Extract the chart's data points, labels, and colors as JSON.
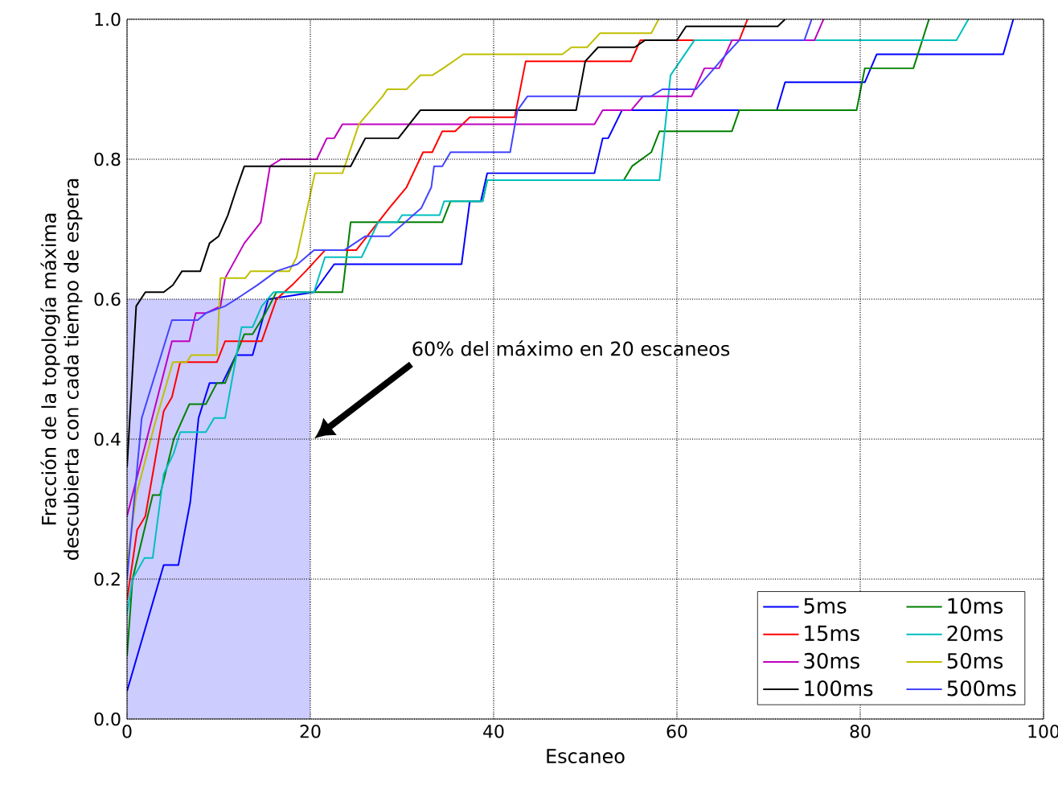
{
  "chart_data": {
    "type": "line",
    "xlabel": "Escaneo",
    "ylabel": "Fracción de la topología máxima descubierta con cada tiempo de espera",
    "xlim": [
      0,
      100
    ],
    "ylim": [
      0,
      1
    ],
    "xticks": [
      0,
      20,
      40,
      60,
      80,
      100
    ],
    "yticks": [
      {
        "value": 0,
        "label": "0.0"
      },
      {
        "value": 0.2,
        "label": "0.2"
      },
      {
        "value": 0.4,
        "label": "0.4"
      },
      {
        "value": 0.6,
        "label": "0.6"
      },
      {
        "value": 0.8,
        "label": "0.8"
      },
      {
        "value": 1,
        "label": "1.0"
      }
    ],
    "grid": true,
    "legend": "bottom right",
    "line_style": "solid",
    "annotations": [
      "60% del máximo en 20 escaneos"
    ],
    "series": [
      {
        "type": "area",
        "color": "#ccccff",
        "x": [
          0,
          20
        ],
        "values": [
          0.6,
          0.6
        ]
      },
      {
        "name": "5ms",
        "color": "#0000ff",
        "x": [
          0,
          4,
          5.6,
          6.9,
          7.8,
          9,
          10.4,
          11.9,
          13.7,
          15.4,
          20.4,
          22.6,
          36.5,
          37.4,
          38.6,
          39.3,
          51,
          51.9,
          52.5,
          54,
          70.9,
          71.8,
          80.5,
          81.8,
          95.6,
          96.7
        ],
        "values": [
          0.04,
          0.22,
          0.22,
          0.31,
          0.43,
          0.48,
          0.48,
          0.52,
          0.52,
          0.6,
          0.61,
          0.65,
          0.65,
          0.74,
          0.74,
          0.78,
          0.78,
          0.83,
          0.83,
          0.87,
          0.87,
          0.91,
          0.91,
          0.95,
          0.95,
          1.0
        ]
      },
      {
        "name": "10ms",
        "color": "#008000",
        "x": [
          0,
          0.6,
          2.8,
          3.6,
          5.1,
          6.8,
          8.6,
          9.8,
          10.7,
          11.9,
          12.8,
          13.7,
          15.1,
          16.3,
          23.5,
          24.4,
          34.4,
          35.3,
          38.8,
          39.3,
          54.2,
          55.1,
          57.2,
          58.1,
          66,
          66.8,
          79.6,
          80.5,
          85.8,
          87.5
        ],
        "values": [
          0.09,
          0.2,
          0.32,
          0.32,
          0.4,
          0.45,
          0.45,
          0.48,
          0.48,
          0.52,
          0.55,
          0.55,
          0.58,
          0.61,
          0.61,
          0.71,
          0.71,
          0.74,
          0.74,
          0.77,
          0.77,
          0.79,
          0.81,
          0.84,
          0.84,
          0.87,
          0.87,
          0.93,
          0.93,
          1.0
        ]
      },
      {
        "name": "15ms",
        "color": "#ff0000",
        "x": [
          0,
          1.1,
          2,
          2.8,
          4,
          4.9,
          5.8,
          9.8,
          10.7,
          14.7,
          16.3,
          18,
          19.5,
          21.6,
          25,
          28.6,
          30.5,
          32.3,
          33.3,
          34.4,
          35.8,
          37.4,
          42.3,
          43.5,
          55,
          56,
          66.8,
          67.7
        ],
        "values": [
          0.17,
          0.27,
          0.29,
          0.35,
          0.44,
          0.46,
          0.51,
          0.51,
          0.54,
          0.54,
          0.6,
          0.62,
          0.64,
          0.67,
          0.67,
          0.73,
          0.76,
          0.81,
          0.81,
          0.84,
          0.84,
          0.86,
          0.86,
          0.94,
          0.94,
          0.97,
          0.97,
          1.0
        ]
      },
      {
        "name": "20ms",
        "color": "#00bfbf",
        "x": [
          0,
          0.6,
          1.9,
          2.8,
          4,
          5.1,
          5.8,
          8.6,
          9.5,
          10.7,
          12.5,
          13.7,
          14.7,
          16,
          20.4,
          21.6,
          25.6,
          27.4,
          29.5,
          30,
          34.1,
          34.6,
          38.8,
          39.3,
          58.1,
          59.3,
          61.9,
          90.5,
          91.8
        ],
        "values": [
          0.15,
          0.2,
          0.23,
          0.23,
          0.35,
          0.38,
          0.41,
          0.41,
          0.43,
          0.43,
          0.56,
          0.56,
          0.59,
          0.61,
          0.61,
          0.66,
          0.66,
          0.71,
          0.71,
          0.72,
          0.72,
          0.74,
          0.74,
          0.77,
          0.77,
          0.92,
          0.97,
          0.97,
          1.0
        ]
      },
      {
        "name": "30ms",
        "color": "#bf00bf",
        "x": [
          0,
          4.9,
          6.8,
          7.5,
          8.6,
          10.2,
          10.7,
          12.8,
          14.6,
          15.6,
          16.8,
          20.7,
          21.8,
          22.6,
          23.5,
          51,
          51.9,
          55,
          56.3,
          61.6,
          63,
          64.6,
          66,
          75,
          76
        ],
        "values": [
          0.29,
          0.54,
          0.54,
          0.58,
          0.58,
          0.59,
          0.63,
          0.68,
          0.71,
          0.79,
          0.8,
          0.8,
          0.83,
          0.83,
          0.85,
          0.85,
          0.87,
          0.87,
          0.89,
          0.89,
          0.93,
          0.93,
          0.97,
          0.97,
          1.0
        ]
      },
      {
        "name": "50ms",
        "color": "#bfbf00",
        "x": [
          0,
          1,
          3,
          5,
          6.5,
          7,
          9.8,
          10.2,
          12.9,
          13.5,
          17.7,
          18.5,
          20.5,
          23.5,
          25.3,
          27.9,
          28.4,
          30.5,
          32,
          33.3,
          34.5,
          36.7,
          47.5,
          48.5,
          50.2,
          51.6,
          57.2,
          58
        ],
        "values": [
          0.22,
          0.32,
          0.42,
          0.51,
          0.51,
          0.52,
          0.52,
          0.63,
          0.63,
          0.64,
          0.64,
          0.66,
          0.78,
          0.78,
          0.85,
          0.89,
          0.9,
          0.9,
          0.92,
          0.92,
          0.93,
          0.95,
          0.95,
          0.96,
          0.96,
          0.98,
          0.98,
          1.0
        ]
      },
      {
        "name": "100ms",
        "color": "#000000",
        "x": [
          0,
          1,
          2,
          4,
          5,
          6,
          8,
          9,
          10,
          11,
          12,
          12.8,
          24.4,
          26,
          29.6,
          32,
          49,
          50,
          51.4,
          55.4,
          56.5,
          60,
          61,
          71,
          71.8
        ],
        "values": [
          0.36,
          0.59,
          0.61,
          0.61,
          0.62,
          0.64,
          0.64,
          0.68,
          0.69,
          0.72,
          0.76,
          0.79,
          0.79,
          0.83,
          0.83,
          0.87,
          0.87,
          0.94,
          0.96,
          0.96,
          0.97,
          0.97,
          0.99,
          0.99,
          1.0
        ]
      },
      {
        "name": "500ms",
        "color": "#4444ff",
        "x": [
          0,
          1.6,
          4.9,
          7.7,
          8.6,
          10.7,
          11.9,
          14.2,
          16.3,
          18.6,
          20.4,
          23.7,
          26,
          28.6,
          32.1,
          33.2,
          33.5,
          34.4,
          35.3,
          41.8,
          42.6,
          43.7,
          57.2,
          58.4,
          62.1,
          65.4,
          66.8,
          73.9,
          74.7
        ],
        "values": [
          0.2,
          0.43,
          0.57,
          0.57,
          0.58,
          0.59,
          0.6,
          0.62,
          0.64,
          0.65,
          0.67,
          0.67,
          0.69,
          0.69,
          0.73,
          0.76,
          0.79,
          0.79,
          0.81,
          0.81,
          0.87,
          0.89,
          0.89,
          0.9,
          0.9,
          0.95,
          0.97,
          0.97,
          1.0
        ]
      }
    ]
  }
}
